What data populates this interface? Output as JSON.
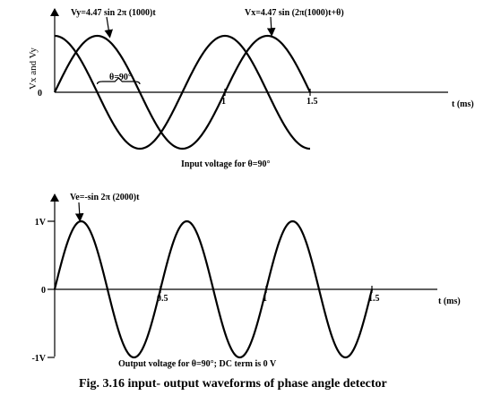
{
  "figure_caption": "Fig. 3.16 input- output waveforms of phase angle detector",
  "chart_data": [
    {
      "type": "line",
      "title": "Input voltage for θ=90°",
      "xlabel": "t (ms)",
      "ylabel": "Vx and Vy",
      "xlim": [
        0,
        1.8
      ],
      "ylim": [
        -4.47,
        4.47
      ],
      "x_ticks": [
        {
          "value": 1,
          "label": "1"
        },
        {
          "value": 1.5,
          "label": "1.5"
        }
      ],
      "y_ticks": [
        {
          "value": 0,
          "label": "0"
        }
      ],
      "series": [
        {
          "name": "Vy=4.47 sin 2π (1000)t",
          "amplitude": 4.47,
          "frequency_hz": 1000,
          "phase_deg": 0,
          "x_range": [
            0,
            1.5
          ]
        },
        {
          "name": "Vx=4.47 sin (2π(1000)t+θ)",
          "amplitude": 4.47,
          "frequency_hz": 1000,
          "phase_deg": 90,
          "x_range": [
            0,
            1.5
          ]
        }
      ],
      "annotations": [
        {
          "text": "θ=90°",
          "x_from": 0.25,
          "x_to": 0.5
        }
      ]
    },
    {
      "type": "line",
      "title": "Output voltage for θ=90°; DC term is 0 V",
      "xlabel": "t (ms)",
      "ylabel": "",
      "xlim": [
        0,
        1.8
      ],
      "ylim": [
        -1,
        1
      ],
      "x_ticks": [
        {
          "value": 0.5,
          "label": "0.5"
        },
        {
          "value": 1,
          "label": "1"
        },
        {
          "value": 1.5,
          "label": "1.5"
        }
      ],
      "y_ticks": [
        {
          "value": 1,
          "label": "1V"
        },
        {
          "value": 0,
          "label": "0"
        },
        {
          "value": -1,
          "label": "-1V"
        }
      ],
      "series": [
        {
          "name": "Ve=-sin 2π (2000)t",
          "amplitude": 1,
          "frequency_hz": 2000,
          "phase_deg": 0,
          "x_range": [
            0,
            1.5
          ]
        }
      ]
    }
  ]
}
